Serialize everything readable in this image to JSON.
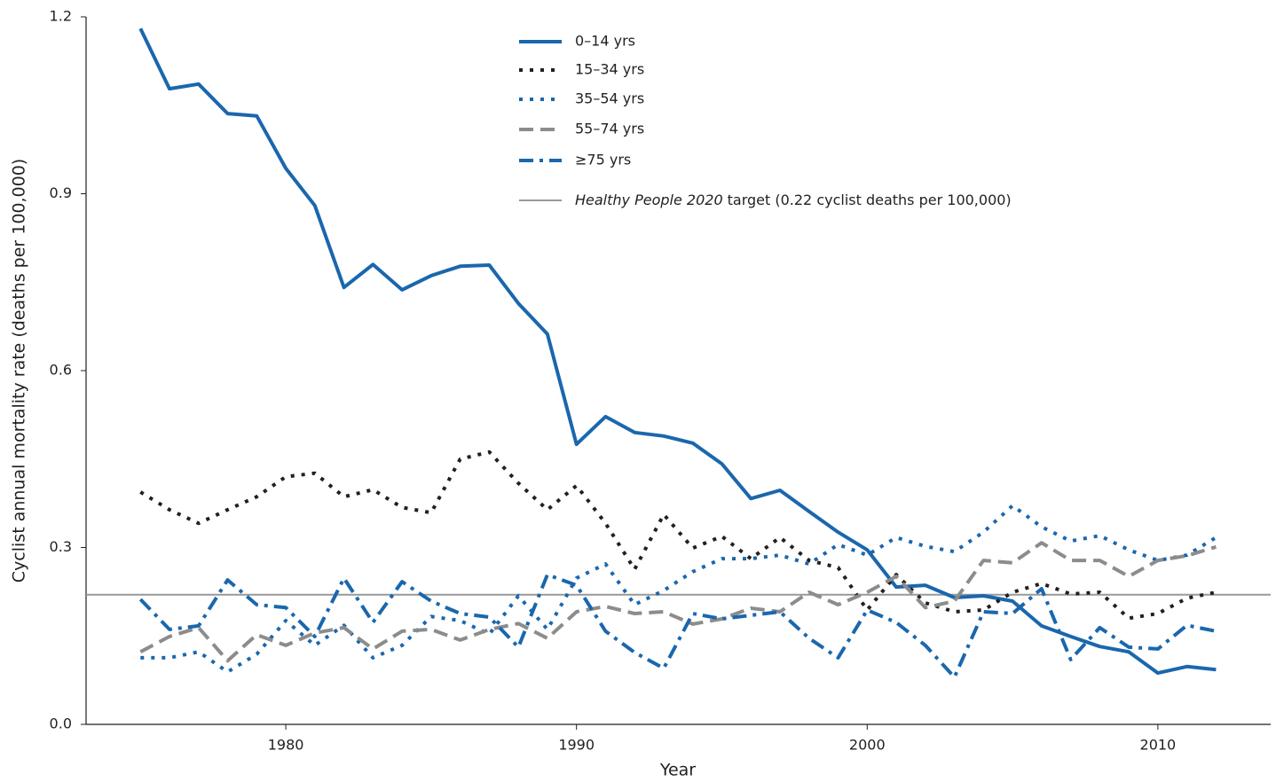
{
  "chart_data": {
    "type": "line",
    "x_label": "Year",
    "y_label": "Cyclist annual mortality rate (deaths per 100,000)",
    "x": [
      1975,
      1976,
      1977,
      1978,
      1979,
      1980,
      1981,
      1982,
      1983,
      1984,
      1985,
      1986,
      1987,
      1988,
      1989,
      1990,
      1991,
      1992,
      1993,
      1994,
      1995,
      1996,
      1997,
      1998,
      1999,
      2000,
      2001,
      2002,
      2003,
      2004,
      2005,
      2006,
      2007,
      2008,
      2009,
      2010,
      2011,
      2012
    ],
    "series": [
      {
        "name": "0–14 yrs",
        "color": "#1a67ad",
        "style": "solid",
        "values": [
          1.18,
          1.078,
          1.086,
          1.036,
          1.032,
          0.943,
          0.88,
          0.741,
          0.78,
          0.737,
          0.761,
          0.777,
          0.779,
          0.714,
          0.662,
          0.475,
          0.522,
          0.495,
          0.489,
          0.477,
          0.442,
          0.383,
          0.397,
          0.361,
          0.326,
          0.296,
          0.233,
          0.236,
          0.215,
          0.218,
          0.209,
          0.167,
          0.149,
          0.132,
          0.123,
          0.087,
          0.098,
          0.093
        ]
      },
      {
        "name": "15–34 yrs",
        "color": "#231f20",
        "style": "dotted",
        "values": [
          0.394,
          0.364,
          0.341,
          0.364,
          0.386,
          0.42,
          0.426,
          0.386,
          0.398,
          0.368,
          0.359,
          0.45,
          0.462,
          0.409,
          0.364,
          0.405,
          0.341,
          0.263,
          0.356,
          0.299,
          0.319,
          0.281,
          0.317,
          0.278,
          0.266,
          0.194,
          0.254,
          0.206,
          0.191,
          0.194,
          0.224,
          0.239,
          0.221,
          0.224,
          0.18,
          0.188,
          0.214,
          0.224
        ]
      },
      {
        "name": "35–54 yrs",
        "color": "#1a67ad",
        "style": "dotted",
        "values": [
          0.113,
          0.113,
          0.123,
          0.089,
          0.119,
          0.176,
          0.134,
          0.168,
          0.113,
          0.134,
          0.183,
          0.176,
          0.153,
          0.218,
          0.161,
          0.248,
          0.272,
          0.203,
          0.227,
          0.259,
          0.281,
          0.281,
          0.287,
          0.272,
          0.305,
          0.287,
          0.317,
          0.302,
          0.293,
          0.326,
          0.371,
          0.335,
          0.311,
          0.32,
          0.296,
          0.278,
          0.287,
          0.317
        ]
      },
      {
        "name": "55–74 yrs",
        "color": "#8c8c8c",
        "style": "dashed",
        "values": [
          0.123,
          0.149,
          0.164,
          0.108,
          0.152,
          0.134,
          0.155,
          0.164,
          0.128,
          0.158,
          0.161,
          0.143,
          0.161,
          0.171,
          0.146,
          0.191,
          0.2,
          0.188,
          0.191,
          0.17,
          0.179,
          0.197,
          0.191,
          0.224,
          0.203,
          0.224,
          0.251,
          0.198,
          0.209,
          0.278,
          0.274,
          0.308,
          0.278,
          0.278,
          0.251,
          0.278,
          0.286,
          0.301
        ]
      },
      {
        "name": "≥75 yrs",
        "color": "#1a67ad",
        "style": "dashdot",
        "values": [
          0.212,
          0.161,
          0.167,
          0.245,
          0.203,
          0.198,
          0.149,
          0.248,
          0.173,
          0.242,
          0.209,
          0.188,
          0.182,
          0.131,
          0.254,
          0.236,
          0.158,
          0.122,
          0.095,
          0.188,
          0.179,
          0.185,
          0.191,
          0.146,
          0.113,
          0.194,
          0.173,
          0.134,
          0.08,
          0.191,
          0.188,
          0.23,
          0.11,
          0.164,
          0.131,
          0.128,
          0.168,
          0.158
        ]
      }
    ],
    "target": {
      "value": 0.22,
      "color": "#999999",
      "name": "Healthy People 2020",
      "label": "target (0.22 cyclist deaths per 100,000)"
    },
    "xlim": [
      1973.13,
      2013.88
    ],
    "xticks": [
      1980,
      1990,
      2000,
      2010
    ],
    "ylim": [
      0,
      1.2
    ],
    "yticks": [
      {
        "value": 0,
        "label": "0.0"
      },
      0.3,
      0.6,
      0.9,
      1.2
    ]
  }
}
